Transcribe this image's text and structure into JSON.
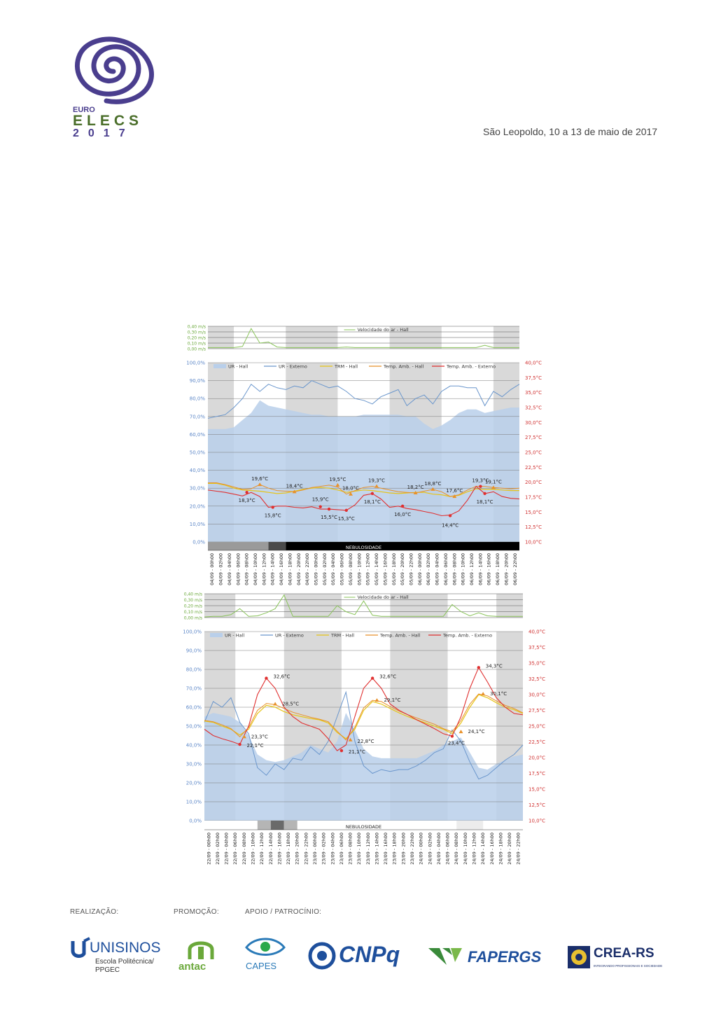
{
  "header": {
    "location_date": "São Leopoldo, 10 a 13 de maio de 2017",
    "logo_top": "EURO",
    "logo_mid": "ELECS",
    "logo_year": "2017"
  },
  "colors": {
    "logo_purple": "#4a3e8e",
    "logo_green": "#4a6e2a",
    "ur_hall": "#c5d7ee",
    "ur_externo": "#6a96cc",
    "trm_hall": "#e6c419",
    "temp_amb_hall": "#e8912a",
    "temp_amb_externo": "#e03030",
    "velocidade": "#8ac45a",
    "night_band": "#d9d9d9"
  },
  "footer": {
    "realizacao": "REALIZAÇÃO:",
    "promocao": "PROMOÇÃO:",
    "apoio": "APOIO / PATROCÍNIO:",
    "unisinos": "UNISINOS",
    "unisinos_sub1": "Escola Politécnica/",
    "unisinos_sub2": "PPGEC",
    "antac": "antac",
    "capes": "CAPES",
    "cnpq": "CNPq",
    "fapergs": "FAPERGS",
    "crea": "CREA-RS",
    "crea_sub": "INTEGRANDO PROFISSIONAIS E SOCIEDADE"
  },
  "chart_data": [
    {
      "type": "line",
      "title": "",
      "legend_top": "Velocidade do ar - Hall",
      "legend": [
        "UR - Hall",
        "UR - Externo",
        "TRM - Hall",
        "Temp. Amb. - Hall",
        "Temp. Amb. - Externo"
      ],
      "nebulosidade_label": "NEBULOSIDADE",
      "wind_ticks": [
        "0,40 m/s",
        "0,30 m/s",
        "0,20 m/s",
        "0,10 m/s",
        "0,00 m/s"
      ],
      "ylim_left": [
        0,
        100
      ],
      "ylim_right": [
        10,
        40
      ],
      "left_ticks": [
        "100,0%",
        "90,0%",
        "80,0%",
        "70,0%",
        "60,0%",
        "50,0%",
        "40,0%",
        "30,0%",
        "20,0%",
        "10,0%",
        "0,0%"
      ],
      "right_ticks": [
        "40,0°C",
        "37,5°C",
        "35,0°C",
        "32,5°C",
        "30,0°C",
        "27,5°C",
        "25,0°C",
        "22,5°C",
        "20,0°C",
        "17,5°C",
        "15,0°C",
        "12,5°C",
        "10,0°C"
      ],
      "categories": [
        "04/09 - 00h00",
        "04/09 - 02h00",
        "04/09 - 04h00",
        "04/09 - 06h00",
        "04/09 - 08h00",
        "04/09 - 10h00",
        "04/09 - 12h00",
        "04/09 - 14h00",
        "04/09 - 16h00",
        "04/09 - 18h00",
        "04/09 - 20h00",
        "04/09 - 22h00",
        "05/09 - 00h00",
        "05/09 - 02h00",
        "05/09 - 04h00",
        "05/09 - 06h00",
        "05/09 - 08h00",
        "05/09 - 10h00",
        "05/09 - 12h00",
        "05/09 - 14h00",
        "05/09 - 16h00",
        "05/09 - 18h00",
        "05/09 - 20h00",
        "05/09 - 22h00",
        "06/09 - 00h00",
        "06/09 - 02h00",
        "06/09 - 04h00",
        "06/09 - 06h00",
        "06/09 - 08h00",
        "06/09 - 10h00",
        "06/09 - 12h00",
        "06/09 - 14h00",
        "06/09 - 16h00",
        "06/09 - 18h00",
        "06/09 - 20h00",
        "06/09 - 22h00"
      ],
      "night_bands": [
        [
          0,
          6
        ],
        [
          18,
          30
        ],
        [
          42,
          54
        ],
        [
          66,
          72
        ]
      ],
      "ur_hall": [
        63,
        63,
        63,
        64,
        68,
        72,
        79,
        76,
        75,
        74,
        73,
        72,
        71,
        71,
        70,
        70,
        70,
        70,
        71,
        71,
        71,
        71,
        71,
        70,
        70,
        66,
        63,
        65,
        68,
        72,
        74,
        74,
        72,
        73,
        74,
        75,
        75
      ],
      "ur_externo": [
        69,
        70,
        71,
        75,
        80,
        88,
        84,
        88,
        86,
        85,
        87,
        86,
        90,
        88,
        86,
        87,
        84,
        80,
        79,
        77,
        81,
        83,
        85,
        76,
        80,
        82,
        77,
        84,
        87,
        87,
        86,
        86,
        76,
        84,
        81,
        85,
        88
      ],
      "trm_hall": [
        19.8,
        19.8,
        19.5,
        19.0,
        18.7,
        18.6,
        18.5,
        18.3,
        18.1,
        18.2,
        18.5,
        18.8,
        19.0,
        19.1,
        19.0,
        18.7,
        18.3,
        18.5,
        18.7,
        18.6,
        18.4,
        18.2,
        18.1,
        18.2,
        18.3,
        18.3,
        18.0,
        17.9,
        17.6,
        17.8,
        18.4,
        18.9,
        18.8,
        18.8,
        18.7,
        18.6,
        18.6
      ],
      "temp_hall": [
        19.9,
        19.9,
        19.6,
        19.2,
        18.8,
        18.9,
        19.6,
        19.0,
        18.6,
        18.5,
        18.4,
        18.7,
        19.1,
        19.3,
        19.5,
        19.2,
        18.0,
        18.6,
        19.1,
        19.3,
        19.0,
        18.7,
        18.4,
        18.3,
        18.2,
        18.5,
        18.8,
        18.4,
        17.6,
        17.9,
        18.7,
        19.3,
        19.3,
        19.1,
        19.0,
        18.9,
        19.0
      ],
      "temp_externo": [
        18.7,
        18.5,
        18.3,
        18.0,
        17.7,
        18.3,
        17.6,
        15.8,
        16.0,
        16.0,
        15.8,
        15.7,
        15.9,
        15.5,
        15.5,
        15.4,
        15.3,
        16.2,
        17.8,
        18.1,
        17.2,
        15.8,
        16.0,
        15.6,
        15.4,
        15.1,
        14.8,
        14.4,
        14.5,
        15.2,
        17.0,
        19.3,
        18.1,
        18.4,
        17.6,
        17.3,
        17.2
      ],
      "wind": [
        0.02,
        0.02,
        0.02,
        0.02,
        0.04,
        0.36,
        0.1,
        0.12,
        0.03,
        0.02,
        0.02,
        0.02,
        0.02,
        0.02,
        0.02,
        0.02,
        0.03,
        0.02,
        0.02,
        0.02,
        0.02,
        0.02,
        0.02,
        0.02,
        0.02,
        0.02,
        0.02,
        0.02,
        0.02,
        0.02,
        0.02,
        0.02,
        0.06,
        0.02,
        0.02,
        0.02,
        0.02
      ],
      "nebulosidade": [
        {
          "from": 0,
          "to": 14,
          "color": "#9a9a9a"
        },
        {
          "from": 14,
          "to": 18,
          "color": "#4a4a4a"
        },
        {
          "from": 18,
          "to": 72,
          "color": "#000000"
        }
      ],
      "annotations": [
        {
          "label": "18,3°C",
          "x": 9,
          "temp": 18.3,
          "color": "#e03030",
          "dy": 14
        },
        {
          "label": "19,6°C",
          "x": 12,
          "temp": 19.6,
          "color": "#e8912a",
          "dy": -6
        },
        {
          "label": "15,8°C",
          "x": 15,
          "temp": 15.8,
          "color": "#e03030",
          "dy": 14
        },
        {
          "label": "18,4°C",
          "x": 20,
          "temp": 18.4,
          "color": "#e8912a",
          "dy": -6
        },
        {
          "label": "15,9°C",
          "x": 26,
          "temp": 15.9,
          "color": "#e03030",
          "dy": -8
        },
        {
          "label": "15,5°C",
          "x": 28,
          "temp": 15.5,
          "color": "#e03030",
          "dy": 14
        },
        {
          "label": "19,5°C",
          "x": 30,
          "temp": 19.5,
          "color": "#e8912a",
          "dy": -6
        },
        {
          "label": "15,3°C",
          "x": 32,
          "temp": 15.3,
          "color": "#e03030",
          "dy": 14
        },
        {
          "label": "18,0°C",
          "x": 33,
          "temp": 18.0,
          "color": "#e8912a",
          "dy": -6
        },
        {
          "label": "18,1°C",
          "x": 38,
          "temp": 18.1,
          "color": "#e03030",
          "dy": 14
        },
        {
          "label": "19,3°C",
          "x": 39,
          "temp": 19.3,
          "color": "#e8912a",
          "dy": -6
        },
        {
          "label": "16,0°C",
          "x": 45,
          "temp": 16.0,
          "color": "#e03030",
          "dy": 14
        },
        {
          "label": "18,2°C",
          "x": 48,
          "temp": 18.2,
          "color": "#e8912a",
          "dy": -6
        },
        {
          "label": "18,8°C",
          "x": 52,
          "temp": 18.8,
          "color": "#e8912a",
          "dy": -6
        },
        {
          "label": "17,6°C",
          "x": 57,
          "temp": 17.6,
          "color": "#e8912a",
          "dy": -6
        },
        {
          "label": "14,4°C",
          "x": 56,
          "temp": 14.4,
          "color": "#e03030",
          "dy": 16
        },
        {
          "label": "19,3°C",
          "x": 63,
          "temp": 19.3,
          "color": "#e03030",
          "dy": -6
        },
        {
          "label": "18,1°C",
          "x": 64,
          "temp": 18.1,
          "color": "#e03030",
          "dy": 14
        },
        {
          "label": "19,1°C",
          "x": 66,
          "temp": 19.1,
          "color": "#e8912a",
          "dy": -6
        }
      ]
    },
    {
      "type": "line",
      "title": "",
      "legend_top": "Velocidade do ar - Hall",
      "legend": [
        "UR - Hall",
        "UR - Externo",
        "TRM - Hall",
        "Temp. Amb. - Hall",
        "Temp. Amb. - Externo"
      ],
      "nebulosidade_label": "NEBULOSIDADE",
      "wind_ticks": [
        "0,40 m/s",
        "0,30 m/s",
        "0,20 m/s",
        "0,10 m/s",
        "0,00 m/s"
      ],
      "ylim_left": [
        0,
        100
      ],
      "ylim_right": [
        10,
        40
      ],
      "left_ticks": [
        "100,0%",
        "90,0%",
        "80,0%",
        "70,0%",
        "60,0%",
        "50,0%",
        "40,0%",
        "30,0%",
        "20,0%",
        "10,0%",
        "0,0%"
      ],
      "right_ticks": [
        "40,0°C",
        "37,5°C",
        "35,0°C",
        "32,5°C",
        "30,0°C",
        "27,5°C",
        "25,0°C",
        "22,5°C",
        "20,0°C",
        "17,5°C",
        "15,0°C",
        "12,5°C",
        "10,0°C"
      ],
      "categories": [
        "22/09 - 00h00",
        "22/09 - 02h00",
        "22/09 - 04h00",
        "22/09 - 06h00",
        "22/09 - 08h00",
        "22/09 - 10h00",
        "22/09 - 12h00",
        "22/09 - 14h00",
        "22/09 - 16h00",
        "22/09 - 18h00",
        "22/09 - 20h00",
        "22/09 - 22h00",
        "23/09 - 00h00",
        "23/09 - 02h00",
        "23/09 - 04h00",
        "23/09 - 06h00",
        "23/09 - 08h00",
        "23/09 - 10h00",
        "23/09 - 12h00",
        "23/09 - 14h00",
        "23/09 - 16h00",
        "23/09 - 18h00",
        "23/09 - 20h00",
        "23/09 - 22h00",
        "24/09 - 00h00",
        "24/09 - 02h00",
        "24/09 - 04h00",
        "24/09 - 06h00",
        "24/09 - 08h00",
        "24/09 - 10h00",
        "24/09 - 12h00",
        "24/09 - 14h00",
        "24/09 - 16h00",
        "24/09 - 18h00",
        "24/09 - 20h00",
        "24/09 - 22h00"
      ],
      "night_bands": [
        [
          0,
          7
        ],
        [
          18,
          31
        ],
        [
          42,
          55
        ],
        [
          66,
          72
        ]
      ],
      "ur_hall": [
        55,
        57,
        56,
        55,
        52,
        45,
        35,
        32,
        31,
        32,
        34,
        36,
        40,
        38,
        36,
        42,
        57,
        48,
        38,
        34,
        33,
        33,
        33,
        33,
        33,
        35,
        37,
        40,
        42,
        44,
        36,
        28,
        27,
        30,
        32,
        34,
        35
      ],
      "ur_externo": [
        52,
        63,
        60,
        65,
        52,
        46,
        28,
        24,
        30,
        27,
        33,
        32,
        39,
        35,
        42,
        55,
        68,
        42,
        29,
        25,
        27,
        26,
        27,
        27,
        29,
        32,
        36,
        38,
        48,
        42,
        31,
        22,
        24,
        28,
        32,
        35,
        40
      ],
      "trm_hall": [
        25.8,
        25.6,
        25.0,
        24.5,
        23.6,
        24.5,
        27.0,
        28.3,
        28.0,
        27.3,
        26.8,
        26.5,
        26.2,
        26.0,
        25.5,
        24.0,
        23.0,
        24.5,
        27.5,
        28.9,
        28.5,
        27.8,
        27.1,
        26.5,
        26.0,
        25.5,
        25.0,
        24.5,
        23.8,
        25.5,
        28.0,
        30.0,
        29.5,
        28.7,
        28.0,
        27.6,
        27.0
      ],
      "temp_hall": [
        25.9,
        25.7,
        25.2,
        24.6,
        23.3,
        24.8,
        27.5,
        28.6,
        28.4,
        27.8,
        27.2,
        26.8,
        26.4,
        26.1,
        25.7,
        24.2,
        22.8,
        24.8,
        27.9,
        29.1,
        28.9,
        28.1,
        27.4,
        26.8,
        26.3,
        25.8,
        25.3,
        24.6,
        24.1,
        25.9,
        28.5,
        30.1,
        29.8,
        29.0,
        28.3,
        27.8,
        27.1
      ],
      "temp_externo": [
        24.5,
        23.5,
        23.0,
        22.6,
        22.1,
        25.0,
        30.0,
        32.6,
        31.0,
        28.0,
        26.5,
        25.5,
        25.0,
        24.5,
        23.0,
        21.1,
        22.0,
        26.5,
        31.0,
        32.6,
        31.0,
        28.5,
        27.5,
        26.8,
        26.0,
        25.3,
        24.6,
        23.8,
        23.4,
        26.5,
        31.0,
        34.3,
        32.0,
        29.5,
        28.0,
        27.0,
        26.8
      ],
      "wind": [
        0.01,
        0.02,
        0.02,
        0.05,
        0.15,
        0.02,
        0.03,
        0.08,
        0.15,
        0.38,
        0.02,
        0.02,
        0.02,
        0.02,
        0.02,
        0.2,
        0.1,
        0.05,
        0.28,
        0.04,
        0.02,
        0.02,
        0.02,
        0.02,
        0.02,
        0.02,
        0.02,
        0.02,
        0.22,
        0.1,
        0.03,
        0.08,
        0.03,
        0.02,
        0.02,
        0.02,
        0.02
      ],
      "nebulosidade": [
        {
          "from": 12,
          "to": 15,
          "color": "#b5b5b5"
        },
        {
          "from": 15,
          "to": 18,
          "color": "#6a6a6a"
        },
        {
          "from": 18,
          "to": 21,
          "color": "#b5b5b5"
        },
        {
          "from": 57,
          "to": 63,
          "color": "#ececec"
        }
      ],
      "annotations": [
        {
          "label": "23,3°C",
          "x": 9,
          "temp": 23.3,
          "color": "#e8912a",
          "dy": 2,
          "dx": 10
        },
        {
          "label": "22,1°C",
          "x": 8,
          "temp": 22.1,
          "color": "#e03030",
          "dy": 4,
          "dx": 10
        },
        {
          "label": "32,6°C",
          "x": 14,
          "temp": 32.6,
          "color": "#e03030",
          "dy": 0,
          "dx": 10
        },
        {
          "label": "28,5°C",
          "x": 16,
          "temp": 28.5,
          "color": "#e8912a",
          "dy": 2,
          "dx": 10
        },
        {
          "label": "21,1°C",
          "x": 31,
          "temp": 21.1,
          "color": "#e03030",
          "dy": 4,
          "dx": 10
        },
        {
          "label": "22,8°C",
          "x": 33,
          "temp": 22.8,
          "color": "#e8912a",
          "dy": 4,
          "dx": 10
        },
        {
          "label": "32,6°C",
          "x": 38,
          "temp": 32.6,
          "color": "#e03030",
          "dy": 0,
          "dx": 10
        },
        {
          "label": "29,1°C",
          "x": 39,
          "temp": 29.1,
          "color": "#e8912a",
          "dy": 2,
          "dx": 10
        },
        {
          "label": "24,1°C",
          "x": 58,
          "temp": 24.1,
          "color": "#e8912a",
          "dy": 2,
          "dx": 10
        },
        {
          "label": "23,4°C",
          "x": 56,
          "temp": 23.4,
          "color": "#e03030",
          "dy": 12,
          "dx": -6
        },
        {
          "label": "34,3°C",
          "x": 62,
          "temp": 34.3,
          "color": "#e03030",
          "dy": 0,
          "dx": 10
        },
        {
          "label": "30,1°C",
          "x": 63,
          "temp": 30.1,
          "color": "#e8912a",
          "dy": 2,
          "dx": 10
        }
      ]
    }
  ]
}
